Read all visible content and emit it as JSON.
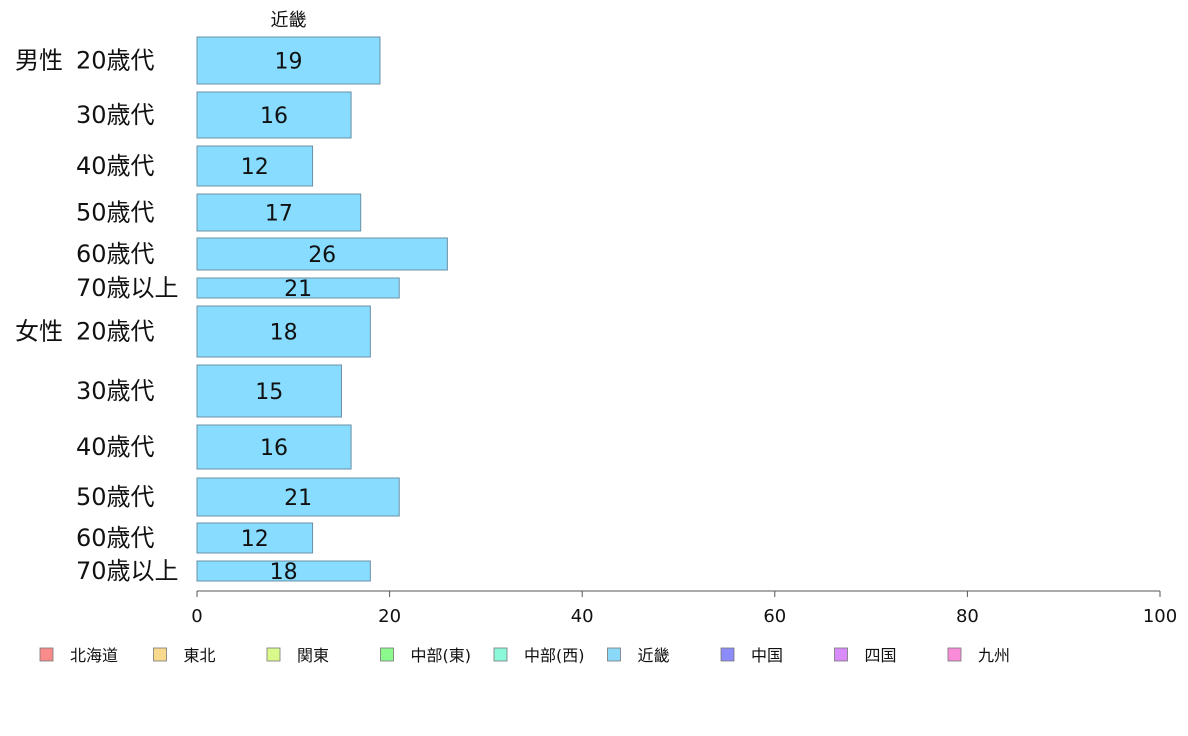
{
  "chart_data": {
    "type": "bar",
    "orientation": "horizontal",
    "panel_title": "近畿",
    "groups": [
      "男性",
      "女性"
    ],
    "categories": [
      "20歳代",
      "30歳代",
      "40歳代",
      "50歳代",
      "60歳代",
      "70歳以上",
      "20歳代",
      "30歳代",
      "40歳代",
      "50歳代",
      "60歳代",
      "70歳以上"
    ],
    "values": [
      19,
      16,
      12,
      17,
      26,
      21,
      18,
      15,
      16,
      21,
      12,
      18
    ],
    "bar_color": "#87dcff",
    "bar_stroke": "#6a8fa6",
    "xlim": [
      0,
      100
    ],
    "xticks": [
      0,
      20,
      40,
      60,
      80,
      100
    ],
    "grid": false,
    "legend_position": "bottom",
    "legend": [
      {
        "name": "北海道",
        "color": "#f98b8b"
      },
      {
        "name": "東北",
        "color": "#f9d98b"
      },
      {
        "name": "関東",
        "color": "#d9f98b"
      },
      {
        "name": "中部(東)",
        "color": "#8bf98b"
      },
      {
        "name": "中部(西)",
        "color": "#8bf9d9"
      },
      {
        "name": "近畿",
        "color": "#8bd9f9"
      },
      {
        "name": "中国",
        "color": "#8b8bf9"
      },
      {
        "name": "四国",
        "color": "#d98bf9"
      },
      {
        "name": "九州",
        "color": "#f98bd9"
      }
    ]
  }
}
